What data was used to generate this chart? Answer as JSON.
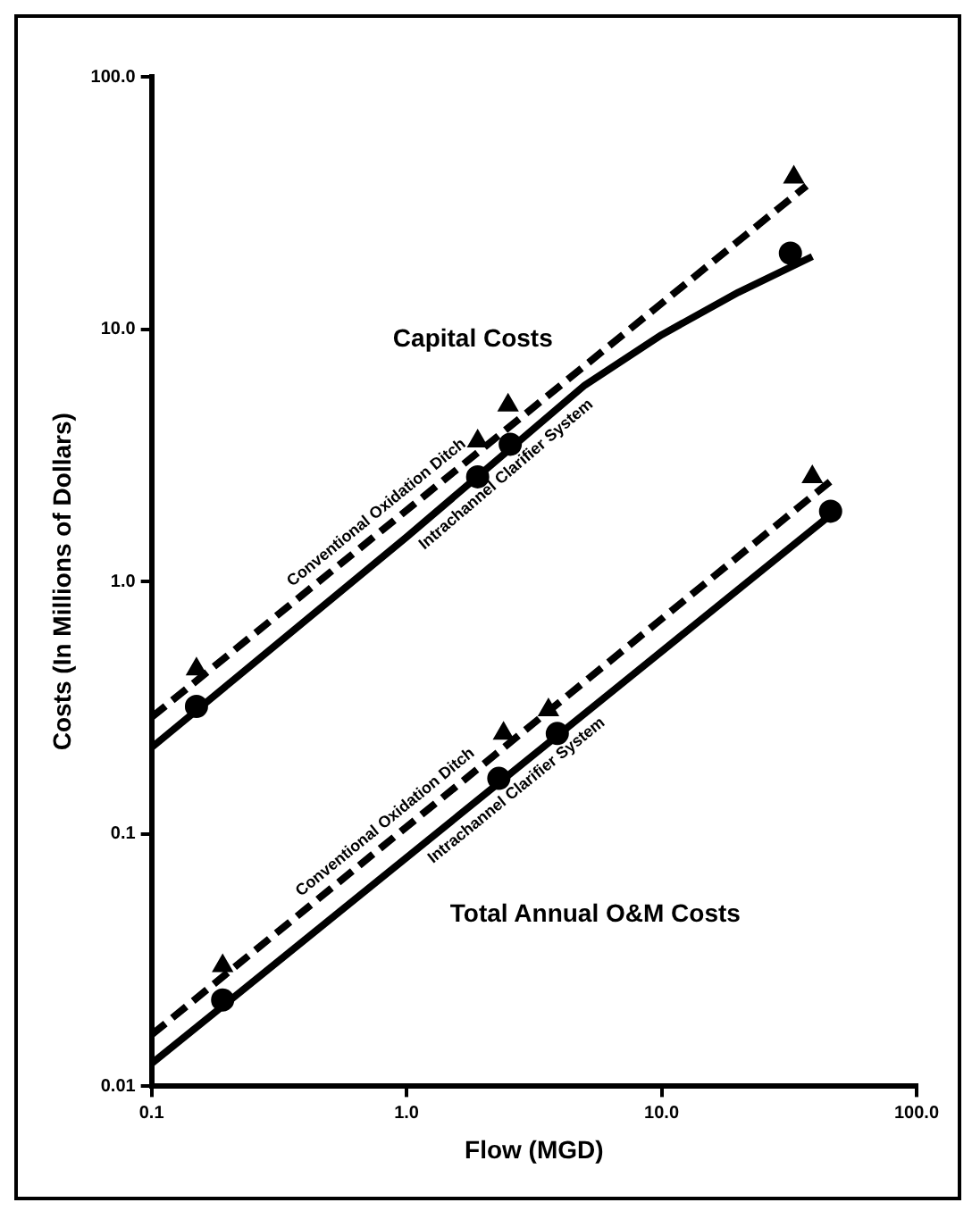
{
  "chart_data": {
    "type": "line",
    "xlabel": "Flow (MGD)",
    "ylabel": "Costs (In Millions of Dollars)",
    "log": "xy",
    "grid": false,
    "legend": false,
    "xlim": [
      0.1,
      100
    ],
    "ylim": [
      0.01,
      100
    ],
    "xticks": [
      {
        "value": 0.1,
        "label": "0.1"
      },
      {
        "value": 1,
        "label": "1.0"
      },
      {
        "value": 10,
        "label": "10.0"
      },
      {
        "value": 100,
        "label": "100.0"
      }
    ],
    "yticks": [
      {
        "value": 0.01,
        "label": "0.01"
      },
      {
        "value": 0.1,
        "label": "0.1"
      },
      {
        "value": 1,
        "label": "1.0"
      },
      {
        "value": 10,
        "label": "10.0"
      },
      {
        "value": 100,
        "label": "100.0"
      }
    ],
    "annotations": [
      "Capital Costs",
      "Total Annual O&M Costs"
    ],
    "series": [
      {
        "name": "Conventional Oxidation Ditch",
        "color": "#000000",
        "line_style": "dashed",
        "marker": "none",
        "x": [
          0.1,
          37
        ],
        "values": [
          0.29,
          37
        ]
      },
      {
        "name": "Intrachannel Clarifier System",
        "color": "#000000",
        "line_style": "solid",
        "marker": "none",
        "x": [
          0.1,
          1,
          5,
          10,
          20,
          39
        ],
        "values": [
          0.22,
          1.5,
          6,
          9.5,
          14,
          19.4
        ]
      },
      {
        "type": "scatter",
        "color": "#000000",
        "marker": "triangle",
        "x": [
          0.15,
          1.9,
          2.5,
          33
        ],
        "values": [
          0.45,
          3.6,
          5,
          40
        ]
      },
      {
        "type": "scatter",
        "color": "#000000",
        "marker": "circle",
        "x": [
          0.15,
          1.9,
          2.55,
          32
        ],
        "values": [
          0.32,
          2.6,
          3.5,
          20
        ]
      },
      {
        "name": "Conventional Oxidation Ditch",
        "color": "#000000",
        "line_style": "dashed",
        "marker": "none",
        "x": [
          0.1,
          46
        ],
        "values": [
          0.016,
          2.5
        ]
      },
      {
        "name": "Intrachannel Clarifier System",
        "color": "#000000",
        "line_style": "solid",
        "marker": "none",
        "x": [
          0.1,
          47
        ],
        "values": [
          0.0123,
          1.87
        ]
      },
      {
        "type": "scatter",
        "color": "#000000",
        "marker": "triangle",
        "x": [
          0.19,
          2.4,
          3.6,
          39
        ],
        "values": [
          0.03,
          0.25,
          0.31,
          2.6
        ]
      },
      {
        "type": "scatter",
        "color": "#000000",
        "marker": "circle",
        "x": [
          0.19,
          2.3,
          3.9,
          46
        ],
        "values": [
          0.022,
          0.166,
          0.25,
          1.9
        ]
      }
    ]
  }
}
